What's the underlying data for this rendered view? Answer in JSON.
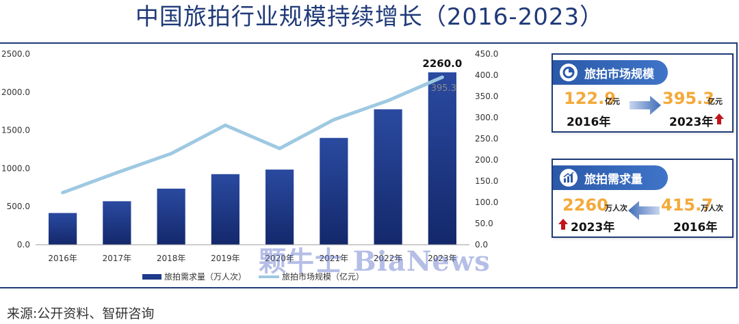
{
  "title": "中国旅拍行业规模持续增长（2016-2023）",
  "source": "来源:公开资料、智研咨询",
  "watermark": "颗牛士 BiaNews",
  "chart_data": {
    "type": "bar",
    "categories": [
      "2016年",
      "2017年",
      "2018年",
      "2019年",
      "2020年",
      "2021年",
      "2022年",
      "2023年"
    ],
    "series": [
      {
        "name": "旅拍需求量（万人次）",
        "type": "bar",
        "axis": "left",
        "values": [
          415.7,
          570,
          735,
          925,
          985,
          1400,
          1775,
          2260
        ],
        "color": "#1e3a8a"
      },
      {
        "name": "旅拍市场规模（亿元）",
        "type": "line",
        "axis": "right",
        "values": [
          122.9,
          170,
          215,
          282,
          227,
          295,
          340,
          395.3
        ],
        "color": "#9ec9e2"
      }
    ],
    "y_left": {
      "ylim": [
        0,
        2500
      ],
      "ticks": [
        "0.0",
        "500.0",
        "1000.0",
        "1500.0",
        "2000.0",
        "2500.0"
      ]
    },
    "y_right": {
      "ylim": [
        0,
        450
      ],
      "ticks": [
        "0.0",
        "50.0",
        "100.0",
        "150.0",
        "200.0",
        "250.0",
        "300.0",
        "350.0",
        "400.0",
        "450.0"
      ]
    },
    "annotations": [
      {
        "text": "2260.0",
        "series": 0,
        "index": 7
      },
      {
        "text": "395.3",
        "series": 1,
        "index": 7
      }
    ],
    "grid": false,
    "legend": "bottom"
  },
  "cards": [
    {
      "title": "旅拍市场规模",
      "icon": "pie-chart-icon",
      "left_value": "122.9",
      "left_unit": "亿元",
      "left_year": "2016年",
      "right_value": "395.3",
      "right_unit": "亿元",
      "right_year": "2023年",
      "trend": "up"
    },
    {
      "title": "旅拍需求量",
      "icon": "bar-chart-icon",
      "left_value": "2260",
      "left_unit": "万人次",
      "left_year": "2023年",
      "right_value": "415.7",
      "right_unit": "万人次",
      "right_year": "2016年",
      "trend": "up"
    }
  ],
  "colors": {
    "accent": "#1f3a78",
    "bar": "#1e3a8a",
    "line": "#9ec9e2",
    "highlight": "#f4a93a",
    "up_arrow": "#c0161b"
  }
}
